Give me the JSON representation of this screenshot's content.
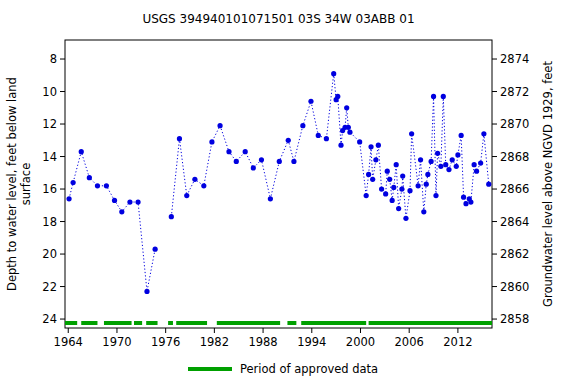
{
  "chart_data": {
    "type": "line",
    "title": "USGS 394940101071501 03S 34W 03ABB 01",
    "y_label": "Depth to water level, feet below land surface",
    "y2_label": "Groundwater level above NGVD 1929, feet",
    "xlim": [
      1963.6,
      2016.2
    ],
    "xticks": [
      1964,
      1970,
      1976,
      1982,
      1988,
      1994,
      2000,
      2006,
      2012
    ],
    "ylim": [
      24.55,
      6.83
    ],
    "yticks": [
      8,
      10,
      12,
      14,
      16,
      18,
      20,
      22,
      24
    ],
    "y2lim": [
      2857.45,
      2875.17
    ],
    "y2ticks": [
      2858,
      2860,
      2862,
      2864,
      2866,
      2868,
      2870,
      2872,
      2874
    ],
    "grid": false,
    "x": [
      1964.1,
      1964.6,
      1965.6,
      1966.6,
      1967.6,
      1968.7,
      1969.7,
      1970.6,
      1971.6,
      1972.6,
      1973.7,
      1974.7,
      1975.7,
      1976.7,
      1977.7,
      1978.6,
      1979.6,
      1980.7,
      1981.7,
      1982.7,
      1983.8,
      1984.7,
      1985.8,
      1986.8,
      1987.8,
      1988.9,
      1990.0,
      1991.1,
      1991.8,
      1992.9,
      1993.9,
      1994.8,
      1995.8,
      1996.7,
      1997.0,
      1997.2,
      1997.6,
      1997.8,
      1998.1,
      1998.3,
      1998.5,
      1998.7,
      1999.9,
      2000.7,
      2001.0,
      2001.3,
      2001.5,
      2001.9,
      2002.2,
      2002.6,
      2003.1,
      2003.3,
      2003.6,
      2003.9,
      2004.1,
      2004.4,
      2004.7,
      2005.1,
      2005.2,
      2005.6,
      2006.1,
      2006.3,
      2007.1,
      2007.4,
      2007.8,
      2008.1,
      2008.3,
      2008.7,
      2009.0,
      2009.3,
      2009.5,
      2009.9,
      2010.2,
      2010.5,
      2010.9,
      2011.3,
      2011.8,
      2012.0,
      2012.4,
      2012.7,
      2013.0,
      2013.4,
      2013.6,
      2014.0,
      2014.3,
      2014.8,
      2015.2,
      2015.8
    ],
    "series": [
      {
        "color": "#0000e0",
        "marker": "circle",
        "line_style": "dotted",
        "values": [
          16.6,
          15.6,
          13.7,
          15.3,
          15.8,
          15.8,
          16.7,
          17.4,
          16.8,
          16.8,
          22.3,
          19.7,
          null,
          17.7,
          12.9,
          16.4,
          15.4,
          15.8,
          13.1,
          12.1,
          13.7,
          14.3,
          13.7,
          14.7,
          14.2,
          16.6,
          14.3,
          13.0,
          14.3,
          12.1,
          10.6,
          12.7,
          12.9,
          8.9,
          10.5,
          10.3,
          13.3,
          12.4,
          12.2,
          11.0,
          12.2,
          12.5,
          13.1,
          16.4,
          15.1,
          13.4,
          15.4,
          14.2,
          13.3,
          16.0,
          16.3,
          14.9,
          15.4,
          16.7,
          15.9,
          14.5,
          17.2,
          16.0,
          15.2,
          17.8,
          16.1,
          12.6,
          15.8,
          14.2,
          17.4,
          15.7,
          15.1,
          14.3,
          10.3,
          16.4,
          13.8,
          14.6,
          10.3,
          14.5,
          14.8,
          14.2,
          14.6,
          13.9,
          12.7,
          16.5,
          16.9,
          16.6,
          16.8,
          14.5,
          14.9,
          14.4,
          12.6,
          15.7
        ]
      },
      {
        "name": "Period of approved data",
        "color": "#00a000",
        "type": "periods",
        "periods": [
          [
            1963.6,
            1965.1
          ],
          [
            1965.6,
            1967.6
          ],
          [
            1968.4,
            1971.8
          ],
          [
            1972.1,
            1973.1
          ],
          [
            1973.6,
            1975.0
          ],
          [
            1976.3,
            1976.9
          ],
          [
            1977.3,
            1981.1
          ],
          [
            1982.3,
            1990.1
          ],
          [
            1991.0,
            1992.1
          ],
          [
            1992.7,
            2000.7
          ],
          [
            2001.0,
            2016.2
          ]
        ]
      }
    ],
    "legend": "bottom"
  }
}
